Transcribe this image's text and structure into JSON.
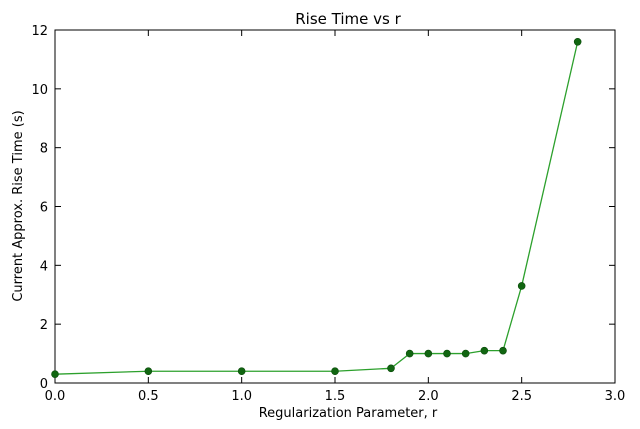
{
  "chart_data": {
    "type": "line",
    "title": "Rise Time vs r",
    "xlabel": "Regularization Parameter, r",
    "ylabel": "Current Approx. Rise Time (s)",
    "xlim": [
      0.0,
      3.0
    ],
    "ylim": [
      0,
      12
    ],
    "xticks": [
      "0.0",
      "0.5",
      "1.0",
      "1.5",
      "2.0",
      "2.5",
      "3.0"
    ],
    "yticks": [
      "0",
      "2",
      "4",
      "6",
      "8",
      "10",
      "12"
    ],
    "grid": false,
    "legend": "none",
    "line_color": "#2ca02c",
    "marker_color": "#116611",
    "series": [
      {
        "x": [
          0.0,
          0.5,
          1.0,
          1.5,
          1.8,
          1.9,
          2.0,
          2.1,
          2.2,
          2.3,
          2.4,
          2.5,
          2.8
        ],
        "y": [
          0.3,
          0.4,
          0.4,
          0.4,
          0.5,
          1.0,
          1.0,
          1.0,
          1.0,
          1.1,
          1.1,
          3.3,
          11.6
        ]
      }
    ]
  }
}
